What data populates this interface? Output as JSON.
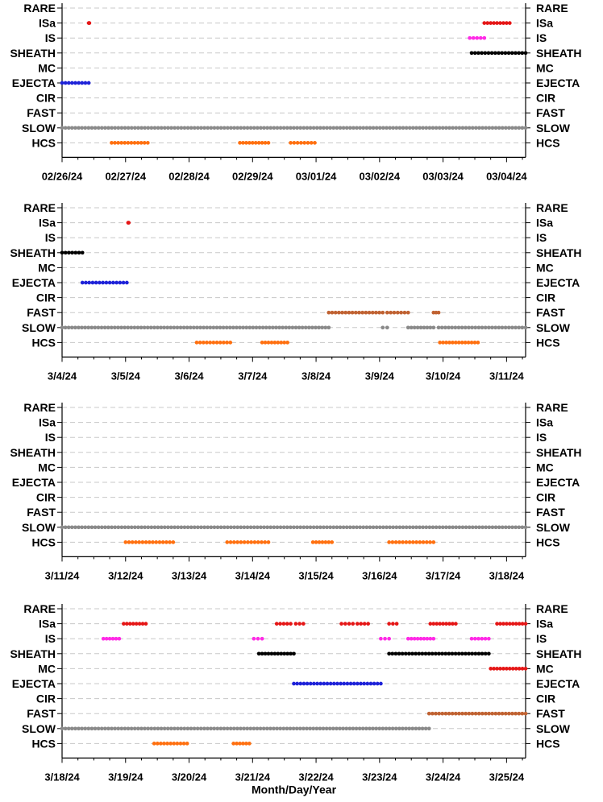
{
  "colors": {
    "RARE": "#000000",
    "ISa": "#e51616",
    "IS": "#ff2ae6",
    "SHEATH": "#000000",
    "MC": "#e51616",
    "EJECTA": "#1e22d8",
    "CIR": "#000000",
    "FAST": "#c06232",
    "SLOW": "#8a8a8a",
    "HCS": "#ff7010"
  },
  "chart_data": [
    {
      "type": "scatter",
      "categories": [
        "RARE",
        "ISa",
        "IS",
        "SHEATH",
        "MC",
        "EJECTA",
        "CIR",
        "FAST",
        "SLOW",
        "HCS"
      ],
      "x_range_days": [
        0,
        7.3
      ],
      "ticks": [
        "02/26/24",
        "02/27/24",
        "02/28/24",
        "02/29/24",
        "03/01/24",
        "03/02/24",
        "03/03/24",
        "03/04/24"
      ],
      "grid": true,
      "intervals": [
        {
          "cat": "ISa",
          "start": 0.42,
          "end": 0.43
        },
        {
          "cat": "ISa",
          "start": 6.65,
          "end": 7.05
        },
        {
          "cat": "IS",
          "start": 6.42,
          "end": 6.65
        },
        {
          "cat": "SHEATH",
          "start": 6.45,
          "end": 7.3
        },
        {
          "cat": "EJECTA",
          "start": 0.0,
          "end": 0.42
        },
        {
          "cat": "SLOW",
          "start": 0.0,
          "end": 7.3
        },
        {
          "cat": "HCS",
          "start": 0.78,
          "end": 1.35
        },
        {
          "cat": "HCS",
          "start": 2.8,
          "end": 3.25
        },
        {
          "cat": "HCS",
          "start": 3.6,
          "end": 3.98
        }
      ]
    },
    {
      "type": "scatter",
      "categories": [
        "RARE",
        "ISa",
        "IS",
        "SHEATH",
        "MC",
        "EJECTA",
        "CIR",
        "FAST",
        "SLOW",
        "HCS"
      ],
      "x_range_days": [
        0,
        7.3
      ],
      "ticks": [
        "3/4/24",
        "3/5/24",
        "3/6/24",
        "3/7/24",
        "3/8/24",
        "3/9/24",
        "3/10/24",
        "3/11/24"
      ],
      "grid": true,
      "intervals": [
        {
          "cat": "ISa",
          "start": 1.04,
          "end": 1.05
        },
        {
          "cat": "SHEATH",
          "start": 0.0,
          "end": 0.32
        },
        {
          "cat": "EJECTA",
          "start": 0.32,
          "end": 1.02
        },
        {
          "cat": "FAST",
          "start": 4.2,
          "end": 5.05
        },
        {
          "cat": "FAST",
          "start": 5.12,
          "end": 5.45
        },
        {
          "cat": "FAST",
          "start": 5.85,
          "end": 5.93
        },
        {
          "cat": "SLOW",
          "start": 0.0,
          "end": 4.2
        },
        {
          "cat": "SLOW",
          "start": 5.05,
          "end": 5.12
        },
        {
          "cat": "SLOW",
          "start": 5.45,
          "end": 5.85
        },
        {
          "cat": "SLOW",
          "start": 5.93,
          "end": 7.3
        },
        {
          "cat": "HCS",
          "start": 2.12,
          "end": 2.65
        },
        {
          "cat": "HCS",
          "start": 3.15,
          "end": 3.55
        },
        {
          "cat": "HCS",
          "start": 5.95,
          "end": 6.55
        }
      ]
    },
    {
      "type": "scatter",
      "categories": [
        "RARE",
        "ISa",
        "IS",
        "SHEATH",
        "MC",
        "EJECTA",
        "CIR",
        "FAST",
        "SLOW",
        "HCS"
      ],
      "x_range_days": [
        0,
        7.3
      ],
      "ticks": [
        "3/11/24",
        "3/12/24",
        "3/13/24",
        "3/14/24",
        "3/15/24",
        "3/16/24",
        "3/17/24",
        "3/18/24"
      ],
      "grid": true,
      "intervals": [
        {
          "cat": "SLOW",
          "start": 0.0,
          "end": 7.3
        },
        {
          "cat": "HCS",
          "start": 1.0,
          "end": 1.75
        },
        {
          "cat": "HCS",
          "start": 2.6,
          "end": 3.25
        },
        {
          "cat": "HCS",
          "start": 3.95,
          "end": 4.25
        },
        {
          "cat": "HCS",
          "start": 5.15,
          "end": 5.85
        }
      ]
    },
    {
      "type": "scatter",
      "categories": [
        "RARE",
        "ISa",
        "IS",
        "SHEATH",
        "MC",
        "EJECTA",
        "CIR",
        "FAST",
        "SLOW",
        "HCS"
      ],
      "x_range_days": [
        0,
        7.3
      ],
      "ticks": [
        "3/18/24",
        "3/19/24",
        "3/20/24",
        "3/21/24",
        "3/22/24",
        "3/23/24",
        "3/24/24",
        "3/25/24"
      ],
      "xlabel": "Month/Day/Year",
      "grid": true,
      "intervals": [
        {
          "cat": "ISa",
          "start": 0.97,
          "end": 1.32
        },
        {
          "cat": "ISa",
          "start": 3.38,
          "end": 3.6
        },
        {
          "cat": "ISa",
          "start": 3.68,
          "end": 3.8
        },
        {
          "cat": "ISa",
          "start": 4.4,
          "end": 4.58
        },
        {
          "cat": "ISa",
          "start": 4.65,
          "end": 4.82
        },
        {
          "cat": "ISa",
          "start": 5.15,
          "end": 5.27
        },
        {
          "cat": "ISa",
          "start": 5.8,
          "end": 6.2
        },
        {
          "cat": "ISa",
          "start": 6.85,
          "end": 7.3
        },
        {
          "cat": "IS",
          "start": 0.65,
          "end": 0.9
        },
        {
          "cat": "IS",
          "start": 3.02,
          "end": 3.15
        },
        {
          "cat": "IS",
          "start": 5.02,
          "end": 5.15
        },
        {
          "cat": "IS",
          "start": 5.45,
          "end": 5.85
        },
        {
          "cat": "IS",
          "start": 6.45,
          "end": 6.72
        },
        {
          "cat": "SHEATH",
          "start": 3.1,
          "end": 3.65
        },
        {
          "cat": "SHEATH",
          "start": 5.15,
          "end": 6.72
        },
        {
          "cat": "MC",
          "start": 6.75,
          "end": 7.3
        },
        {
          "cat": "EJECTA",
          "start": 3.65,
          "end": 5.02
        },
        {
          "cat": "FAST",
          "start": 5.78,
          "end": 7.3
        },
        {
          "cat": "SLOW",
          "start": 0.0,
          "end": 5.78
        },
        {
          "cat": "HCS",
          "start": 1.45,
          "end": 1.97
        },
        {
          "cat": "HCS",
          "start": 2.7,
          "end": 2.95
        }
      ]
    }
  ]
}
